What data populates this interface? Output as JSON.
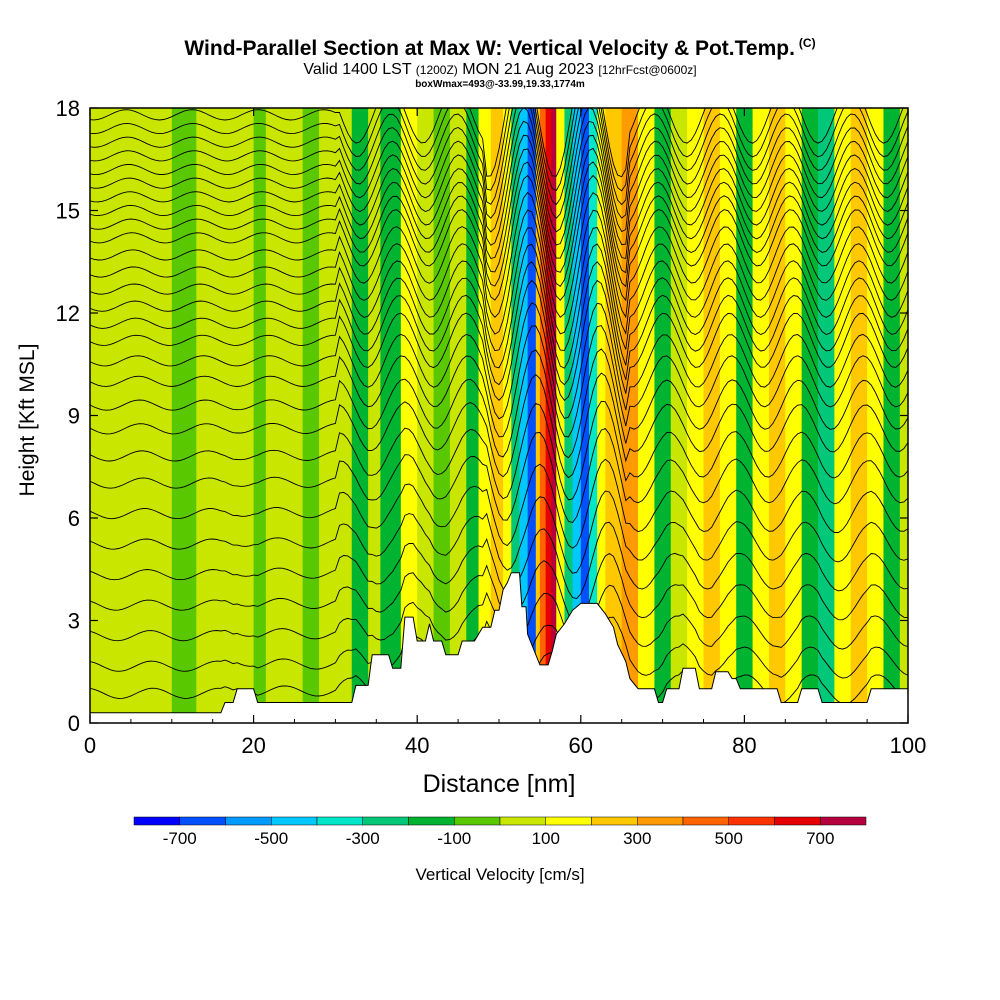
{
  "title": {
    "main": "Wind-Parallel Section at Max W: Vertical Velocity & Pot.Temp.",
    "copyright": "(C)",
    "valid_prefix": "Valid 1400 LST",
    "valid_utc": "(1200Z)",
    "valid_date": "MON 21 Aug 2023",
    "forecast": "[12hrFcst@0600z]",
    "box": "boxWmax=493@-33.99,19.33,1774m"
  },
  "chart_data": {
    "type": "heatmap",
    "title": "Wind-Parallel Section at Max W: Vertical Velocity & Pot.Temp.",
    "xlabel": "Distance [nm]",
    "ylabel": "Height [Kft MSL]",
    "xlim": [
      0,
      100
    ],
    "ylim": [
      0,
      18
    ],
    "xticks": [
      0,
      20,
      40,
      60,
      80,
      100
    ],
    "yticks": [
      0,
      3,
      6,
      9,
      12,
      15,
      18
    ],
    "colorbar": {
      "label": "Vertical Velocity [cm/s]",
      "tick_labels": [
        "-700",
        "-500",
        "-300",
        "-100",
        "100",
        "300",
        "500",
        "700"
      ],
      "tick_values": [
        -700,
        -500,
        -300,
        -100,
        100,
        300,
        500,
        700
      ],
      "bins": [
        {
          "from": -800,
          "to": -700,
          "color": "#0000ff"
        },
        {
          "from": -700,
          "to": -600,
          "color": "#0050ff"
        },
        {
          "from": -600,
          "to": -500,
          "color": "#009bff"
        },
        {
          "from": -500,
          "to": -400,
          "color": "#00c8ff"
        },
        {
          "from": -400,
          "to": -300,
          "color": "#00e6c8"
        },
        {
          "from": -300,
          "to": -200,
          "color": "#00c878"
        },
        {
          "from": -200,
          "to": -100,
          "color": "#00b432"
        },
        {
          "from": -100,
          "to": 0,
          "color": "#5ac800"
        },
        {
          "from": 0,
          "to": 100,
          "color": "#c8e600"
        },
        {
          "from": 100,
          "to": 200,
          "color": "#ffff00"
        },
        {
          "from": 200,
          "to": 300,
          "color": "#ffc800"
        },
        {
          "from": 300,
          "to": 400,
          "color": "#ff9b00"
        },
        {
          "from": 400,
          "to": 500,
          "color": "#ff6400"
        },
        {
          "from": 500,
          "to": 600,
          "color": "#ff3200"
        },
        {
          "from": 600,
          "to": 700,
          "color": "#e60000"
        },
        {
          "from": 700,
          "to": 800,
          "color": "#b4003c"
        }
      ]
    },
    "vertical_velocity_bands": [
      {
        "x_from": 0,
        "x_to": 10,
        "w": 30
      },
      {
        "x_from": 10,
        "x_to": 13,
        "w": -40
      },
      {
        "x_from": 13,
        "x_to": 20,
        "w": 40
      },
      {
        "x_from": 20,
        "x_to": 21.5,
        "w": -50
      },
      {
        "x_from": 21.5,
        "x_to": 26,
        "w": 40
      },
      {
        "x_from": 26,
        "x_to": 28,
        "w": -30
      },
      {
        "x_from": 28,
        "x_to": 32,
        "w": 50
      },
      {
        "x_from": 32,
        "x_to": 34,
        "w": -120
      },
      {
        "x_from": 34,
        "x_to": 35.5,
        "w": 90
      },
      {
        "x_from": 35.5,
        "x_to": 38,
        "w": -170
      },
      {
        "x_from": 38,
        "x_to": 40,
        "w": 150
      },
      {
        "x_from": 40,
        "x_to": 42,
        "w": 60
      },
      {
        "x_from": 42,
        "x_to": 44,
        "w": -40
      },
      {
        "x_from": 44,
        "x_to": 46,
        "w": 60
      },
      {
        "x_from": 46,
        "x_to": 47.5,
        "w": -120
      },
      {
        "x_from": 47.5,
        "x_to": 49,
        "w": 130
      },
      {
        "x_from": 49,
        "x_to": 50.5,
        "w": 260
      },
      {
        "x_from": 50.5,
        "x_to": 51.5,
        "w": 110
      },
      {
        "x_from": 51.5,
        "x_to": 52.5,
        "w": -250
      },
      {
        "x_from": 52.5,
        "x_to": 53.5,
        "w": -450
      },
      {
        "x_from": 53.5,
        "x_to": 54.5,
        "w": -650
      },
      {
        "x_from": 54.5,
        "x_to": 55,
        "w": 250
      },
      {
        "x_from": 55,
        "x_to": 55.7,
        "w": 450
      },
      {
        "x_from": 55.7,
        "x_to": 56.4,
        "w": 650
      },
      {
        "x_from": 56.4,
        "x_to": 57,
        "w": 750
      },
      {
        "x_from": 57,
        "x_to": 58,
        "w": 150
      },
      {
        "x_from": 58,
        "x_to": 59,
        "w": -250
      },
      {
        "x_from": 59,
        "x_to": 60,
        "w": -450
      },
      {
        "x_from": 60,
        "x_to": 61,
        "w": -650
      },
      {
        "x_from": 61,
        "x_to": 62,
        "w": -350
      },
      {
        "x_from": 62,
        "x_to": 63,
        "w": 150
      },
      {
        "x_from": 63,
        "x_to": 65,
        "w": 250
      },
      {
        "x_from": 65,
        "x_to": 67,
        "w": 350
      },
      {
        "x_from": 67,
        "x_to": 69,
        "w": 150
      },
      {
        "x_from": 69,
        "x_to": 71,
        "w": -120
      },
      {
        "x_from": 71,
        "x_to": 73,
        "w": 40
      },
      {
        "x_from": 73,
        "x_to": 75,
        "w": 150
      },
      {
        "x_from": 75,
        "x_to": 77,
        "w": 250
      },
      {
        "x_from": 77,
        "x_to": 79,
        "w": 120
      },
      {
        "x_from": 79,
        "x_to": 81,
        "w": -120
      },
      {
        "x_from": 81,
        "x_to": 83,
        "w": 150
      },
      {
        "x_from": 83,
        "x_to": 85,
        "w": 250
      },
      {
        "x_from": 85,
        "x_to": 87,
        "w": 120
      },
      {
        "x_from": 87,
        "x_to": 89,
        "w": -120
      },
      {
        "x_from": 89,
        "x_to": 91,
        "w": -250
      },
      {
        "x_from": 91,
        "x_to": 93,
        "w": 150
      },
      {
        "x_from": 93,
        "x_to": 95,
        "w": 250
      },
      {
        "x_from": 95,
        "x_to": 97,
        "w": 120
      },
      {
        "x_from": 97,
        "x_to": 99,
        "w": -120
      },
      {
        "x_from": 99,
        "x_to": 100,
        "w": 40
      }
    ],
    "terrain_kft": [
      [
        0,
        0.3
      ],
      [
        16,
        0.3
      ],
      [
        16.5,
        0.6
      ],
      [
        17.5,
        0.6
      ],
      [
        18,
        1.0
      ],
      [
        20,
        1.0
      ],
      [
        20.5,
        0.6
      ],
      [
        32,
        0.6
      ],
      [
        32.5,
        1.1
      ],
      [
        34,
        1.1
      ],
      [
        34.5,
        2.0
      ],
      [
        36.5,
        2.0
      ],
      [
        37,
        1.6
      ],
      [
        38,
        1.6
      ],
      [
        38.5,
        3.1
      ],
      [
        39.5,
        3.1
      ],
      [
        40,
        2.4
      ],
      [
        41,
        2.4
      ],
      [
        41.5,
        2.9
      ],
      [
        42,
        2.4
      ],
      [
        43,
        2.4
      ],
      [
        43.5,
        2.0
      ],
      [
        45,
        2.0
      ],
      [
        45.5,
        2.4
      ],
      [
        47,
        2.4
      ],
      [
        48,
        2.8
      ],
      [
        49,
        2.8
      ],
      [
        49.5,
        3.3
      ],
      [
        50,
        3.3
      ],
      [
        50.5,
        3.9
      ],
      [
        51,
        4.1
      ],
      [
        51.5,
        4.4
      ],
      [
        52.5,
        4.4
      ],
      [
        52.8,
        3.4
      ],
      [
        53.3,
        3.4
      ],
      [
        53.5,
        2.6
      ],
      [
        54.5,
        2.0
      ],
      [
        55,
        1.7
      ],
      [
        56,
        1.7
      ],
      [
        56.5,
        2.1
      ],
      [
        57,
        2.6
      ],
      [
        58,
        2.9
      ],
      [
        59,
        3.3
      ],
      [
        60,
        3.5
      ],
      [
        62,
        3.5
      ],
      [
        63,
        3.2
      ],
      [
        64,
        2.8
      ],
      [
        64.5,
        2.3
      ],
      [
        65.5,
        1.8
      ],
      [
        66,
        1.3
      ],
      [
        67,
        1.0
      ],
      [
        69,
        1.0
      ],
      [
        69.5,
        0.6
      ],
      [
        70,
        0.6
      ],
      [
        70.5,
        1.0
      ],
      [
        72,
        1.0
      ],
      [
        72.5,
        1.6
      ],
      [
        74,
        1.6
      ],
      [
        74.5,
        1.0
      ],
      [
        76,
        1.0
      ],
      [
        76.5,
        1.5
      ],
      [
        78,
        1.5
      ],
      [
        78.5,
        1.3
      ],
      [
        79,
        1.3
      ],
      [
        79.5,
        1.0
      ],
      [
        84,
        1.0
      ],
      [
        84.5,
        0.6
      ],
      [
        86.5,
        0.6
      ],
      [
        87,
        1.0
      ],
      [
        89,
        1.0
      ],
      [
        89.5,
        0.6
      ],
      [
        95,
        0.6
      ],
      [
        95.5,
        1.0
      ],
      [
        100,
        1.0
      ]
    ],
    "theta_contours_kft": [
      0.8,
      1.6,
      2.5,
      3.4,
      4.3,
      5.2,
      6.1,
      7.0,
      7.8,
      8.6,
      9.3,
      10.0,
      10.6,
      11.2,
      11.7,
      12.2,
      12.7,
      13.2,
      13.7,
      14.2,
      14.6,
      15.0,
      15.4,
      15.8,
      16.2,
      16.6,
      17.0,
      17.4,
      17.8
    ]
  }
}
